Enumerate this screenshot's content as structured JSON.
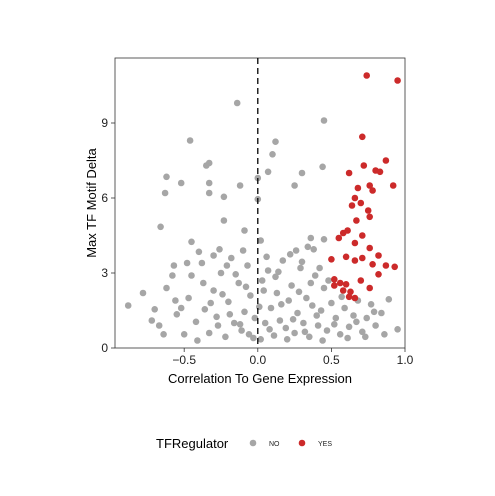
{
  "chart_data": {
    "type": "scatter",
    "xlabel": "Correlation To Gene Expression",
    "ylabel": "Max TF Motif Delta",
    "xlim": [
      -0.97,
      1.0
    ],
    "ylim": [
      0,
      11.6
    ],
    "x_ticks": [
      -0.5,
      0.0,
      0.5,
      1.0
    ],
    "x_tick_labels": [
      "−0.5",
      "0.0",
      "0.5",
      "1.0"
    ],
    "y_ticks": [
      0,
      3,
      6,
      9
    ],
    "y_tick_labels": [
      "0",
      "3",
      "6",
      "9"
    ],
    "grid": false,
    "reference_line": {
      "x": 0,
      "style": "dashed",
      "color": "#000000"
    },
    "legend": {
      "title": "TFRegulator",
      "placement": "bottom",
      "entries": [
        {
          "label": "NO",
          "color": "#a6a6a6"
        },
        {
          "label": "YES",
          "color": "#cc2a2a"
        }
      ]
    },
    "series": [
      {
        "name": "YES",
        "color": "#cc2a2a",
        "points": [
          [
            0.74,
            10.9
          ],
          [
            0.95,
            10.7
          ],
          [
            0.71,
            8.45
          ],
          [
            0.87,
            7.5
          ],
          [
            0.72,
            7.3
          ],
          [
            0.8,
            7.1
          ],
          [
            0.83,
            7.05
          ],
          [
            0.62,
            7.0
          ],
          [
            0.68,
            6.4
          ],
          [
            0.76,
            6.5
          ],
          [
            0.78,
            6.3
          ],
          [
            0.66,
            6.0
          ],
          [
            0.92,
            6.5
          ],
          [
            0.7,
            5.8
          ],
          [
            0.64,
            5.7
          ],
          [
            0.75,
            5.5
          ],
          [
            0.67,
            5.1
          ],
          [
            0.76,
            5.25
          ],
          [
            0.61,
            4.7
          ],
          [
            0.58,
            4.6
          ],
          [
            0.55,
            4.4
          ],
          [
            0.71,
            4.5
          ],
          [
            0.66,
            4.2
          ],
          [
            0.76,
            4.0
          ],
          [
            0.6,
            3.65
          ],
          [
            0.66,
            3.5
          ],
          [
            0.71,
            3.6
          ],
          [
            0.82,
            3.7
          ],
          [
            0.78,
            3.35
          ],
          [
            0.87,
            3.3
          ],
          [
            0.93,
            3.25
          ],
          [
            0.82,
            2.95
          ],
          [
            0.5,
            3.55
          ],
          [
            0.52,
            2.75
          ],
          [
            0.56,
            2.6
          ],
          [
            0.6,
            2.55
          ],
          [
            0.52,
            2.5
          ],
          [
            0.58,
            2.3
          ],
          [
            0.63,
            2.25
          ],
          [
            0.62,
            2.05
          ],
          [
            0.66,
            2.0
          ],
          [
            0.76,
            2.4
          ],
          [
            0.7,
            2.7
          ]
        ]
      },
      {
        "name": "NO",
        "color": "#a6a6a6",
        "points": [
          [
            -0.14,
            9.8
          ],
          [
            -0.46,
            8.3
          ],
          [
            0.12,
            8.25
          ],
          [
            0.45,
            9.1
          ],
          [
            -0.62,
            6.85
          ],
          [
            -0.33,
            7.4
          ],
          [
            -0.35,
            7.3
          ],
          [
            0.07,
            7.05
          ],
          [
            0.3,
            7.0
          ],
          [
            0.44,
            7.25
          ],
          [
            0.1,
            7.75
          ],
          [
            -0.52,
            6.6
          ],
          [
            -0.33,
            6.6
          ],
          [
            -0.63,
            6.2
          ],
          [
            -0.33,
            6.2
          ],
          [
            -0.12,
            6.5
          ],
          [
            0.25,
            6.5
          ],
          [
            0.0,
            6.8
          ],
          [
            -0.23,
            6.05
          ],
          [
            0.0,
            5.95
          ],
          [
            -0.23,
            5.1
          ],
          [
            -0.66,
            4.85
          ],
          [
            -0.09,
            4.7
          ],
          [
            0.02,
            4.3
          ],
          [
            -0.45,
            4.25
          ],
          [
            0.36,
            4.4
          ],
          [
            0.45,
            4.35
          ],
          [
            -0.88,
            1.7
          ],
          [
            -0.78,
            2.2
          ],
          [
            -0.72,
            1.1
          ],
          [
            -0.67,
            0.9
          ],
          [
            -0.62,
            2.4
          ],
          [
            -0.56,
            1.9
          ],
          [
            -0.55,
            1.35
          ],
          [
            -0.5,
            0.55
          ],
          [
            -0.45,
            2.9
          ],
          [
            -0.42,
            1.05
          ],
          [
            -0.38,
            3.4
          ],
          [
            -0.36,
            1.55
          ],
          [
            -0.33,
            0.6
          ],
          [
            -0.3,
            2.3
          ],
          [
            -0.28,
            1.25
          ],
          [
            -0.25,
            3.0
          ],
          [
            -0.22,
            0.45
          ],
          [
            -0.2,
            1.85
          ],
          [
            -0.18,
            3.6
          ],
          [
            -0.16,
            1.0
          ],
          [
            -0.13,
            2.6
          ],
          [
            -0.11,
            0.7
          ],
          [
            -0.09,
            1.45
          ],
          [
            -0.07,
            3.3
          ],
          [
            -0.05,
            2.1
          ],
          [
            -0.03,
            0.4
          ],
          [
            -0.02,
            1.2
          ],
          [
            0.02,
            0.35
          ],
          [
            0.03,
            2.7
          ],
          [
            0.05,
            1.0
          ],
          [
            0.07,
            3.1
          ],
          [
            0.09,
            1.6
          ],
          [
            0.11,
            0.5
          ],
          [
            0.13,
            2.2
          ],
          [
            0.15,
            1.1
          ],
          [
            0.17,
            3.5
          ],
          [
            0.19,
            0.8
          ],
          [
            0.21,
            1.9
          ],
          [
            0.23,
            2.5
          ],
          [
            0.25,
            0.6
          ],
          [
            0.27,
            1.4
          ],
          [
            0.29,
            3.2
          ],
          [
            0.31,
            1.0
          ],
          [
            0.33,
            2.0
          ],
          [
            0.35,
            0.45
          ],
          [
            0.37,
            1.7
          ],
          [
            0.39,
            2.9
          ],
          [
            0.41,
            0.9
          ],
          [
            0.43,
            1.5
          ],
          [
            0.45,
            2.4
          ],
          [
            0.47,
            0.7
          ],
          [
            0.5,
            1.8
          ],
          [
            0.53,
            1.2
          ],
          [
            0.56,
            0.55
          ],
          [
            0.59,
            1.6
          ],
          [
            0.62,
            0.85
          ],
          [
            0.65,
            1.3
          ],
          [
            0.68,
            1.9
          ],
          [
            0.71,
            0.65
          ],
          [
            0.74,
            1.2
          ],
          [
            0.77,
            1.75
          ],
          [
            0.8,
            0.9
          ],
          [
            0.84,
            1.4
          ],
          [
            0.89,
            1.95
          ],
          [
            0.95,
            0.75
          ],
          [
            -0.7,
            1.55
          ],
          [
            -0.64,
            0.55
          ],
          [
            -0.58,
            2.9
          ],
          [
            -0.52,
            1.6
          ],
          [
            -0.47,
            2.0
          ],
          [
            -0.41,
            0.3
          ],
          [
            -0.37,
            2.6
          ],
          [
            -0.32,
            1.8
          ],
          [
            -0.27,
            0.9
          ],
          [
            -0.24,
            2.15
          ],
          [
            -0.19,
            1.35
          ],
          [
            -0.15,
            2.95
          ],
          [
            -0.12,
            0.95
          ],
          [
            -0.08,
            2.45
          ],
          [
            -0.06,
            0.55
          ],
          [
            0.01,
            1.65
          ],
          [
            0.04,
            2.3
          ],
          [
            0.08,
            0.75
          ],
          [
            0.12,
            2.85
          ],
          [
            0.16,
            1.75
          ],
          [
            0.2,
            0.35
          ],
          [
            0.24,
            1.15
          ],
          [
            0.28,
            2.25
          ],
          [
            0.32,
            0.65
          ],
          [
            0.36,
            2.6
          ],
          [
            0.4,
            1.3
          ],
          [
            0.44,
            0.3
          ],
          [
            0.48,
            2.7
          ],
          [
            0.52,
            0.95
          ],
          [
            0.57,
            2.05
          ],
          [
            0.61,
            0.4
          ],
          [
            0.67,
            1.05
          ],
          [
            0.73,
            0.45
          ],
          [
            0.79,
            1.45
          ],
          [
            0.86,
            0.55
          ],
          [
            -0.48,
            3.4
          ],
          [
            -0.4,
            3.85
          ],
          [
            -0.3,
            3.7
          ],
          [
            -0.21,
            3.3
          ],
          [
            -0.1,
            3.9
          ],
          [
            0.06,
            3.65
          ],
          [
            0.14,
            3.05
          ],
          [
            0.22,
            3.75
          ],
          [
            0.3,
            3.45
          ],
          [
            0.38,
            3.95
          ],
          [
            0.42,
            3.2
          ],
          [
            0.34,
            4.05
          ],
          [
            0.26,
            3.9
          ],
          [
            -0.26,
            3.95
          ],
          [
            -0.57,
            3.3
          ]
        ]
      }
    ]
  }
}
